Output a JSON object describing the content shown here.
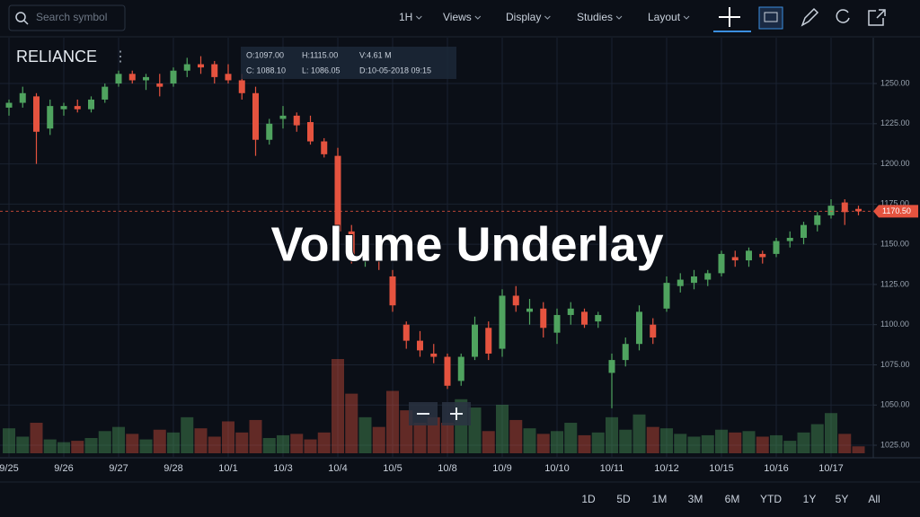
{
  "toolbar": {
    "search_placeholder": "Search symbol",
    "menus": [
      "1H",
      "Views",
      "Display",
      "Studies",
      "Layout"
    ]
  },
  "chart_data": {
    "type": "candlestick",
    "title": "RELIANCE",
    "ohlc_legend": [
      "O:1097.00",
      "H:1115.00",
      "V:4.61 M",
      "C: 1088.10",
      "L: 1086.05",
      "D:10-05-2018 09:15"
    ],
    "overlay_text": "Volume Underlay",
    "categories": [
      "9/25",
      null,
      null,
      null,
      "9/26",
      null,
      null,
      null,
      "9/27",
      null,
      null,
      null,
      "9/28",
      null,
      null,
      null,
      "10/1",
      null,
      null,
      null,
      "10/3",
      null,
      null,
      null,
      "10/4",
      null,
      null,
      null,
      "10/5",
      null,
      null,
      null,
      "10/8",
      null,
      null,
      null,
      "10/9",
      null,
      null,
      null,
      "10/10",
      null,
      null,
      null,
      "10/11",
      null,
      null,
      null,
      "10/12",
      null,
      null,
      null,
      "10/15",
      null,
      null,
      null,
      "10/16",
      null,
      null,
      null,
      "10/17",
      null,
      null
    ],
    "open": [
      1235,
      1238,
      1242,
      1222,
      1234,
      1236,
      1234,
      1240,
      1250,
      1256,
      1252,
      1250,
      1250,
      1258,
      1262,
      1262,
      1256,
      1252,
      1244,
      1215,
      1228,
      1230,
      1226,
      1214,
      1205,
      1158,
      1140,
      1142,
      1130,
      1100,
      1090,
      1082,
      1080,
      1065,
      1080,
      1098,
      1085,
      1118,
      1108,
      1110,
      1095,
      1106,
      1108,
      1102,
      1070,
      1078,
      1088,
      1100,
      1110,
      1124,
      1126,
      1128,
      1132,
      1142,
      1140,
      1144,
      1144,
      1152,
      1154,
      1162,
      1168,
      1176,
      1172
    ],
    "high": [
      1240,
      1248,
      1244,
      1240,
      1238,
      1240,
      1242,
      1250,
      1258,
      1258,
      1256,
      1256,
      1260,
      1266,
      1267,
      1264,
      1262,
      1256,
      1248,
      1228,
      1236,
      1232,
      1230,
      1216,
      1210,
      1162,
      1146,
      1148,
      1134,
      1102,
      1096,
      1088,
      1082,
      1082,
      1105,
      1102,
      1122,
      1124,
      1116,
      1114,
      1110,
      1114,
      1110,
      1108,
      1082,
      1092,
      1112,
      1104,
      1130,
      1132,
      1134,
      1134,
      1146,
      1146,
      1148,
      1146,
      1154,
      1158,
      1164,
      1170,
      1178,
      1178,
      1174
    ],
    "low": [
      1230,
      1235,
      1200,
      1218,
      1230,
      1232,
      1232,
      1238,
      1248,
      1250,
      1246,
      1242,
      1248,
      1254,
      1256,
      1250,
      1250,
      1240,
      1205,
      1212,
      1222,
      1220,
      1212,
      1204,
      1150,
      1138,
      1136,
      1134,
      1108,
      1085,
      1080,
      1076,
      1060,
      1062,
      1078,
      1078,
      1080,
      1108,
      1100,
      1092,
      1088,
      1100,
      1098,
      1098,
      1048,
      1074,
      1084,
      1088,
      1108,
      1120,
      1122,
      1124,
      1130,
      1136,
      1136,
      1138,
      1142,
      1148,
      1150,
      1158,
      1166,
      1162,
      1168
    ],
    "close": [
      1238,
      1244,
      1220,
      1236,
      1236,
      1234,
      1240,
      1248,
      1256,
      1252,
      1254,
      1248,
      1258,
      1262,
      1260,
      1254,
      1252,
      1244,
      1215,
      1225,
      1230,
      1224,
      1214,
      1206,
      1158,
      1142,
      1142,
      1140,
      1112,
      1090,
      1084,
      1080,
      1062,
      1080,
      1100,
      1082,
      1118,
      1112,
      1110,
      1098,
      1106,
      1110,
      1100,
      1106,
      1078,
      1088,
      1108,
      1092,
      1126,
      1128,
      1130,
      1132,
      1144,
      1140,
      1146,
      1142,
      1152,
      1154,
      1162,
      1168,
      1174,
      1170,
      1170.5
    ],
    "volume": [
      1.8,
      1.2,
      2.2,
      1.0,
      0.8,
      0.9,
      1.1,
      1.6,
      1.9,
      1.4,
      1.0,
      1.7,
      1.5,
      2.6,
      1.8,
      1.2,
      2.3,
      1.5,
      2.4,
      1.1,
      1.3,
      1.4,
      1.0,
      1.5,
      6.8,
      4.3,
      2.6,
      1.9,
      4.5,
      3.1,
      2.2,
      2.6,
      2.2,
      3.9,
      3.3,
      1.6,
      3.5,
      2.4,
      1.8,
      1.4,
      1.6,
      2.2,
      1.3,
      1.5,
      2.6,
      1.7,
      2.8,
      1.9,
      1.8,
      1.4,
      1.2,
      1.3,
      1.7,
      1.5,
      1.6,
      1.2,
      1.3,
      0.9,
      1.5,
      2.1,
      2.9,
      1.4,
      0.5
    ],
    "up_color": "#4fa35f",
    "down_color": "#e5533f",
    "ylim": [
      1017.2,
      1278.5
    ],
    "yticks": [
      {
        "value": 1025,
        "label": "1025.00"
      },
      {
        "value": 1050,
        "label": "1050.00"
      },
      {
        "value": 1075,
        "label": "1075.00"
      },
      {
        "value": 1100,
        "label": "1100.00"
      },
      {
        "value": 1125,
        "label": "1125.00"
      },
      {
        "value": 1150,
        "label": "1150.00"
      },
      {
        "value": 1175,
        "label": "1175.00"
      },
      {
        "value": 1200,
        "label": "1200.00"
      },
      {
        "value": 1225,
        "label": "1225.00"
      },
      {
        "value": 1250,
        "label": "1250.00"
      }
    ],
    "last_price": {
      "value": 1170.5,
      "label": "1170.50"
    },
    "grid": true
  },
  "range_buttons": [
    "1D",
    "5D",
    "1M",
    "3M",
    "6M",
    "YTD",
    "1Y",
    "5Y",
    "All"
  ]
}
